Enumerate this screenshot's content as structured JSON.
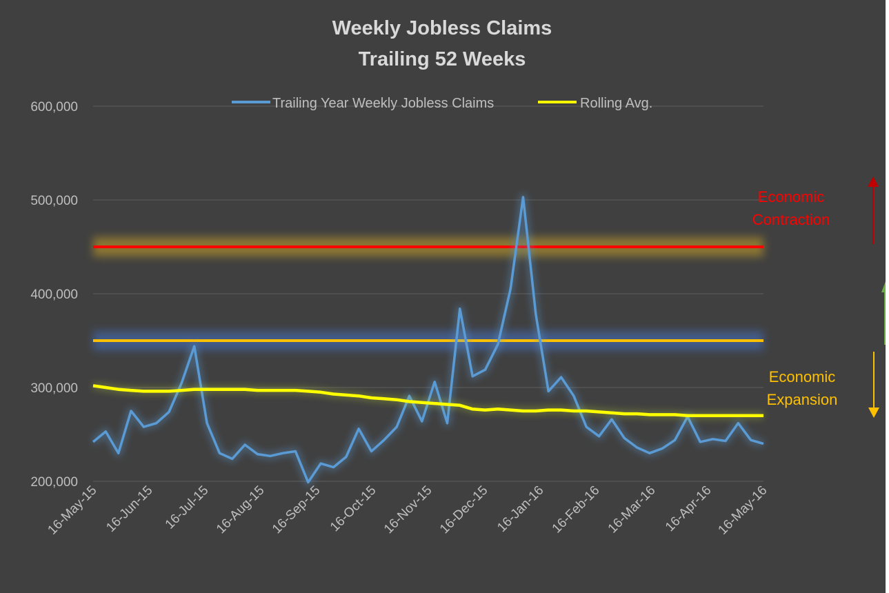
{
  "chart_data": {
    "type": "line",
    "title": "Weekly Jobless Claims",
    "subtitle": "Trailing 52 Weeks",
    "xlabel": "",
    "ylabel": "",
    "ylim": [
      200000,
      600000
    ],
    "y_ticks": [
      200000,
      300000,
      400000,
      500000,
      600000
    ],
    "y_tick_labels": [
      "200,000",
      "300,000",
      "400,000",
      "500,000",
      "600,000"
    ],
    "x_start": "2015-05-16",
    "x_end": "2016-05-16",
    "x_tick_labels": [
      "16-May-15",
      "16-Jun-15",
      "16-Jul-15",
      "16-Aug-15",
      "16-Sep-15",
      "16-Oct-15",
      "16-Nov-15",
      "16-Dec-15",
      "16-Jan-16",
      "16-Feb-16",
      "16-Mar-16",
      "16-Apr-16",
      "16-May-16"
    ],
    "grid": true,
    "legend_position": "top",
    "series": [
      {
        "name": "Trailing Year Weekly Jobless Claims",
        "color": "#5B9BD5",
        "values": [
          242000,
          253000,
          230000,
          275000,
          258000,
          262000,
          274000,
          305000,
          344000,
          262000,
          230000,
          224000,
          239000,
          229000,
          227000,
          230000,
          232000,
          199000,
          219000,
          215000,
          226000,
          256000,
          232000,
          244000,
          258000,
          291000,
          264000,
          306000,
          262000,
          384000,
          312000,
          319000,
          346000,
          405000,
          503000,
          378000,
          296000,
          311000,
          291000,
          258000,
          248000,
          266000,
          246000,
          236000,
          230000,
          235000,
          244000,
          269000,
          242000,
          245000,
          243000,
          262000,
          244000,
          240000
        ]
      },
      {
        "name": "Rolling Avg.",
        "color": "#FFFF00",
        "values": [
          302000,
          300000,
          298000,
          297000,
          296000,
          296000,
          296000,
          297000,
          298000,
          298000,
          298000,
          298000,
          298000,
          297000,
          297000,
          297000,
          297000,
          296000,
          295000,
          293000,
          292000,
          291000,
          289000,
          288000,
          287000,
          285000,
          284000,
          283000,
          282000,
          281000,
          277000,
          276000,
          277000,
          276000,
          275000,
          275000,
          276000,
          276000,
          275000,
          275000,
          274000,
          273000,
          272000,
          272000,
          271000,
          271000,
          271000,
          270000,
          270000,
          270000,
          270000,
          270000,
          270000,
          270000
        ]
      }
    ],
    "reference_lines": [
      {
        "value": 450000,
        "color": "#FF0000",
        "glow": "#C9A227"
      },
      {
        "value": 350000,
        "color": "#FFC000",
        "glow": "#4472C4"
      }
    ],
    "annotations": [
      {
        "text_lines": [
          "Economic",
          "Contraction"
        ],
        "color": "#FF0000",
        "arrow": "up"
      },
      {
        "text_lines": [
          "Economic",
          "Expansion"
        ],
        "color": "#FFC000",
        "arrow": "down"
      }
    ]
  }
}
